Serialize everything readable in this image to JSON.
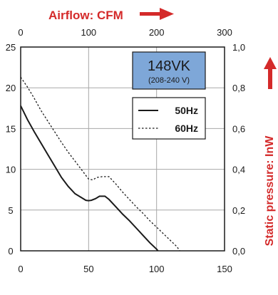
{
  "chart_data": {
    "type": "line",
    "top_axis": {
      "label": "Airflow: CFM",
      "ticks": [
        "0",
        "100",
        "200",
        "300"
      ],
      "range": [
        0,
        300
      ]
    },
    "bottom_axis": {
      "ticks": [
        "0",
        "50",
        "100",
        "150"
      ],
      "range": [
        0,
        150
      ]
    },
    "left_axis": {
      "ticks": [
        "0",
        "5",
        "10",
        "15",
        "20",
        "25"
      ],
      "range": [
        0,
        25
      ]
    },
    "right_axis": {
      "label": "Static pressure: InW",
      "ticks": [
        "0,0",
        "0,2",
        "0,4",
        "0,6",
        "0,8",
        "1,0"
      ],
      "range": [
        0,
        1.0
      ]
    },
    "model_box": {
      "title": "148VK",
      "subtitle": "(208-240 V)",
      "fill": "#7ea7d8"
    },
    "grid": true,
    "legend_position": "top-right",
    "series": [
      {
        "name": "50Hz",
        "style": "solid",
        "x": [
          0,
          5,
          10,
          15,
          20,
          25,
          30,
          35,
          40,
          45,
          48,
          50,
          52,
          55,
          58,
          62,
          65,
          70,
          75,
          80,
          85,
          90,
          95,
          100,
          101
        ],
        "y": [
          17.8,
          16.1,
          14.6,
          13.2,
          11.8,
          10.4,
          9.0,
          7.9,
          7.0,
          6.5,
          6.2,
          6.15,
          6.2,
          6.4,
          6.7,
          6.7,
          6.3,
          5.4,
          4.5,
          3.7,
          2.8,
          1.9,
          1.0,
          0.2,
          0.0
        ]
      },
      {
        "name": "60Hz",
        "style": "dashed",
        "x": [
          0,
          5,
          10,
          15,
          20,
          25,
          30,
          35,
          40,
          45,
          50,
          53,
          56,
          60,
          65,
          70,
          75,
          80,
          85,
          90,
          95,
          100,
          105,
          110,
          115,
          117
        ],
        "y": [
          21.3,
          20.1,
          18.7,
          17.2,
          15.9,
          14.6,
          13.3,
          12.1,
          11.0,
          9.9,
          8.8,
          8.7,
          9.0,
          9.1,
          9.1,
          8.2,
          7.2,
          6.3,
          5.4,
          4.6,
          3.7,
          2.9,
          2.1,
          1.3,
          0.5,
          0.0
        ]
      }
    ],
    "colors": {
      "accent": "#d42a2a",
      "grid": "#a8a8a8",
      "axis": "#1a1a1a"
    }
  }
}
